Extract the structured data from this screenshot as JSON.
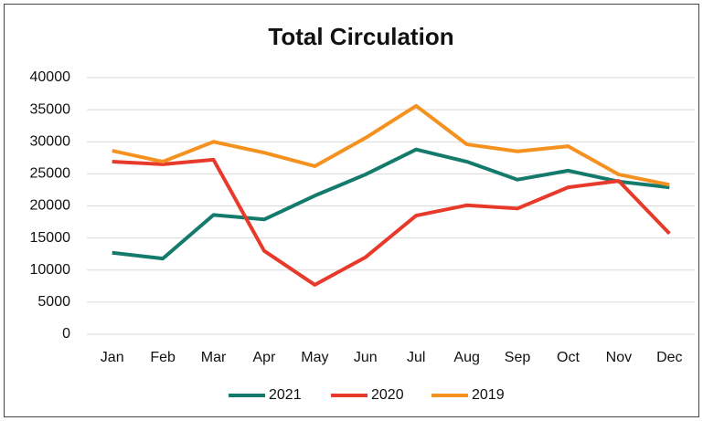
{
  "chart_data": {
    "type": "line",
    "title": "Total Circulation",
    "categories": [
      "Jan",
      "Feb",
      "Mar",
      "Apr",
      "May",
      "Jun",
      "Jul",
      "Aug",
      "Sep",
      "Oct",
      "Nov",
      "Dec"
    ],
    "series": [
      {
        "name": "2021",
        "color": "#137a6c",
        "values": [
          12700,
          11800,
          18600,
          17900,
          21600,
          24900,
          28800,
          26900,
          24100,
          25500,
          23800,
          22900
        ]
      },
      {
        "name": "2020",
        "color": "#e83a2a",
        "values": [
          26900,
          26500,
          27200,
          13000,
          7700,
          12000,
          18500,
          20100,
          19600,
          22900,
          23900,
          15700
        ]
      },
      {
        "name": "2019",
        "color": "#f5911f",
        "values": [
          28600,
          26900,
          30000,
          28300,
          26200,
          30600,
          35600,
          29600,
          28500,
          29300,
          24900,
          23300
        ]
      }
    ],
    "ylim": [
      0,
      40000
    ],
    "yticks": [
      0,
      5000,
      10000,
      15000,
      20000,
      25000,
      30000,
      35000,
      40000
    ],
    "grid": true,
    "legend": "bottom"
  }
}
